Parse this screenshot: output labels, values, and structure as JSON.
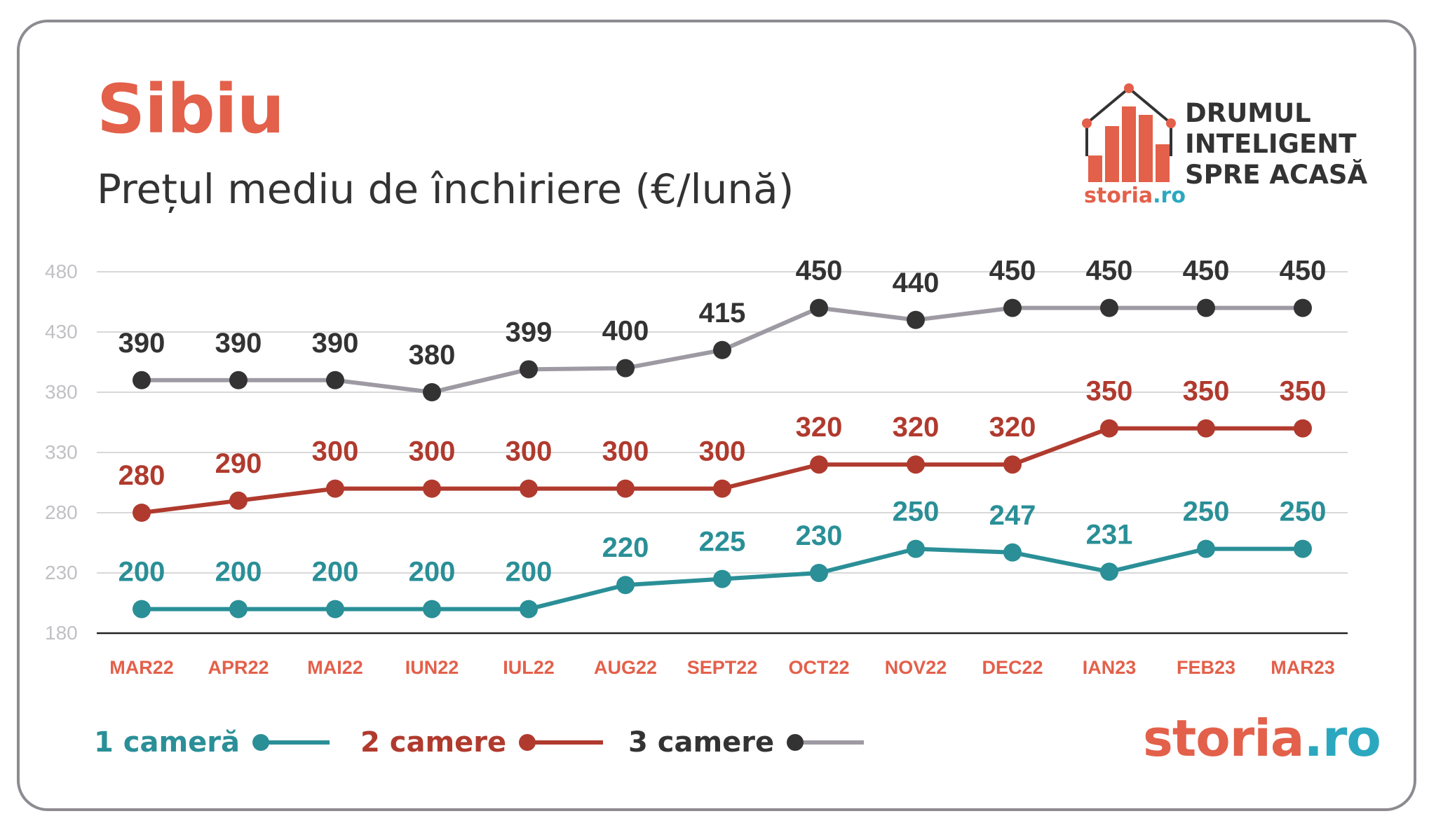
{
  "header": {
    "title": "Sibiu",
    "subtitle": "Prețul mediu de închiriere (€/lună)"
  },
  "branding": {
    "slogan_lines": [
      "DRUMUL",
      "INTELIGENT",
      "SPRE ACASĂ"
    ],
    "logo_text_main": "storia",
    "logo_text_suffix": ".ro",
    "footer_main": "storia",
    "footer_suffix": ".ro"
  },
  "colors": {
    "accent": "#e3604a",
    "series_1": "#2a8f97",
    "series_2": "#b03a2e",
    "series_3_line": "#9e9aa3",
    "series_3_marker": "#333333",
    "text_dark": "#333333",
    "axis_label": "#c2c0c4",
    "grid": "#d8d8d8",
    "logo_blue": "#2ba8bf"
  },
  "chart_data": {
    "type": "line",
    "title": "Prețul mediu de închiriere (€/lună)",
    "categories": [
      "MAR22",
      "APR22",
      "MAI22",
      "IUN22",
      "IUL22",
      "AUG22",
      "SEPT22",
      "OCT22",
      "NOV22",
      "DEC22",
      "IAN23",
      "FEB23",
      "MAR23"
    ],
    "yticks": [
      180,
      230,
      280,
      330,
      380,
      430,
      480
    ],
    "ylim": [
      180,
      480
    ],
    "grid": true,
    "legend_position": "bottom-left",
    "series": [
      {
        "name": "1 cameră",
        "values": [
          200,
          200,
          200,
          200,
          200,
          220,
          225,
          230,
          250,
          247,
          231,
          250,
          250
        ]
      },
      {
        "name": "2 camere",
        "values": [
          280,
          290,
          300,
          300,
          300,
          300,
          300,
          320,
          320,
          320,
          350,
          350,
          350
        ]
      },
      {
        "name": "3 camere",
        "values": [
          390,
          390,
          390,
          380,
          399,
          400,
          415,
          450,
          440,
          450,
          450,
          450,
          450
        ]
      }
    ]
  }
}
